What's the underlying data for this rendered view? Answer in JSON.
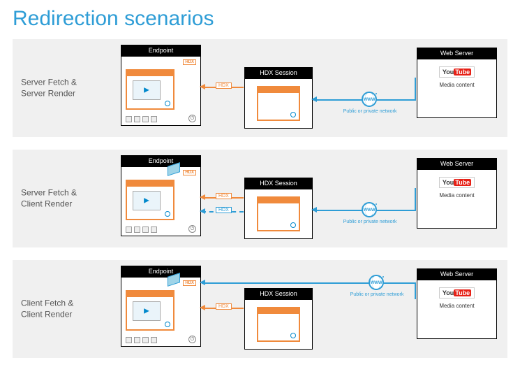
{
  "title": "Redirection scenarios",
  "colors": {
    "accent_blue": "#2e9dd6",
    "accent_orange": "#f08a3c",
    "panel_bg": "#f0f0f0",
    "youtube_red": "#e62117"
  },
  "common": {
    "endpoint_label": "Endpoint",
    "hdx_session_label": "HDX Session",
    "webserver_label": "Web Server",
    "hdx_badge": "HDX",
    "www_label": "WWW",
    "network_label": "Public or private network",
    "youtube_you": "You",
    "youtube_tube": "Tube",
    "media_content": "Media content"
  },
  "scenarios": [
    {
      "id": "sfsr",
      "label_line1": "Server Fetch &",
      "label_line2": "Server Render",
      "endpoint_to_hdx": {
        "style": "solid-orange",
        "tag": "HDX"
      },
      "hdx_to_server": true,
      "client_direct": false,
      "peel_on_endpoint": false
    },
    {
      "id": "sfcr",
      "label_line1": "Server Fetch &",
      "label_line2": "Client Render",
      "endpoint_to_hdx": {
        "style": "dual",
        "tag": "HDX"
      },
      "hdx_to_server": true,
      "client_direct": false,
      "peel_on_endpoint": true
    },
    {
      "id": "cfcr",
      "label_line1": "Client Fetch &",
      "label_line2": "Client Render",
      "endpoint_to_hdx": {
        "style": "solid-orange",
        "tag": "HDX"
      },
      "hdx_to_server": false,
      "client_direct": true,
      "peel_on_endpoint": true
    }
  ]
}
